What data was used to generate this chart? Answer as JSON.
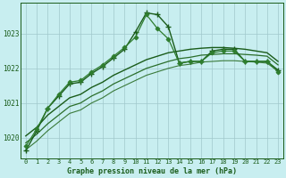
{
  "title": "Graphe pression niveau de la mer (hPa)",
  "bg_color": "#c8eef0",
  "grid_color": "#a0c8cc",
  "line_color_dark": "#1a5c1a",
  "xlim": [
    -0.5,
    23.5
  ],
  "ylim": [
    1019.4,
    1023.9
  ],
  "yticks": [
    1020,
    1021,
    1022,
    1023
  ],
  "xticks": [
    0,
    1,
    2,
    3,
    4,
    5,
    6,
    7,
    8,
    9,
    10,
    11,
    12,
    13,
    14,
    15,
    16,
    17,
    18,
    19,
    20,
    21,
    22,
    23
  ],
  "series": [
    {
      "x": [
        0,
        1,
        2,
        3,
        4,
        5,
        6,
        7,
        8,
        9,
        10,
        11,
        12,
        13,
        14,
        15,
        16,
        17,
        18,
        19,
        20,
        21,
        22,
        23
      ],
      "y": [
        1019.62,
        1020.2,
        1020.85,
        1021.2,
        1021.55,
        1021.6,
        1021.85,
        1022.05,
        1022.3,
        1022.55,
        1023.05,
        1023.6,
        1023.55,
        1023.2,
        1022.15,
        1022.2,
        1022.2,
        1022.5,
        1022.55,
        1022.55,
        1022.2,
        1022.2,
        1022.2,
        1021.95
      ],
      "color": "#1a5c1a",
      "marker": "+",
      "linewidth": 1.0,
      "markersize": 4,
      "markeredgewidth": 1.0
    },
    {
      "x": [
        0,
        1,
        2,
        3,
        4,
        5,
        6,
        7,
        8,
        9,
        10,
        11,
        12,
        13,
        14,
        15,
        16,
        17,
        18,
        19,
        20,
        21,
        22,
        23
      ],
      "y": [
        1019.75,
        1020.25,
        1020.85,
        1021.25,
        1021.6,
        1021.65,
        1021.9,
        1022.1,
        1022.35,
        1022.6,
        1022.9,
        1023.55,
        1023.15,
        1022.85,
        1022.15,
        1022.2,
        1022.2,
        1022.45,
        1022.5,
        1022.5,
        1022.2,
        1022.2,
        1022.2,
        1021.9
      ],
      "color": "#2e7d2e",
      "marker": "D",
      "linewidth": 0.9,
      "markersize": 2.5,
      "markeredgewidth": 0.7
    },
    {
      "x": [
        0,
        1,
        2,
        3,
        4,
        5,
        6,
        7,
        8,
        9,
        10,
        11,
        12,
        13,
        14,
        15,
        16,
        17,
        18,
        19,
        20,
        21,
        22,
        23
      ],
      "y": [
        1020.05,
        1020.3,
        1020.65,
        1020.9,
        1021.15,
        1021.25,
        1021.45,
        1021.6,
        1021.8,
        1021.95,
        1022.1,
        1022.25,
        1022.35,
        1022.45,
        1022.5,
        1022.55,
        1022.58,
        1022.6,
        1022.6,
        1022.58,
        1022.55,
        1022.5,
        1022.45,
        1022.2
      ],
      "color": "#1a5c1a",
      "marker": null,
      "linewidth": 1.0,
      "markersize": 0,
      "markeredgewidth": 0
    },
    {
      "x": [
        0,
        1,
        2,
        3,
        4,
        5,
        6,
        7,
        8,
        9,
        10,
        11,
        12,
        13,
        14,
        15,
        16,
        17,
        18,
        19,
        20,
        21,
        22,
        23
      ],
      "y": [
        1019.85,
        1020.1,
        1020.4,
        1020.65,
        1020.9,
        1021.0,
        1021.2,
        1021.35,
        1021.55,
        1021.7,
        1021.85,
        1022.0,
        1022.1,
        1022.2,
        1022.28,
        1022.32,
        1022.38,
        1022.4,
        1022.42,
        1022.42,
        1022.4,
        1022.38,
        1022.35,
        1022.1
      ],
      "color": "#2a6e2a",
      "marker": null,
      "linewidth": 0.9,
      "markersize": 0,
      "markeredgewidth": 0
    },
    {
      "x": [
        0,
        1,
        2,
        3,
        4,
        5,
        6,
        7,
        8,
        9,
        10,
        11,
        12,
        13,
        14,
        15,
        16,
        17,
        18,
        19,
        20,
        21,
        22,
        23
      ],
      "y": [
        1019.65,
        1019.9,
        1020.2,
        1020.45,
        1020.7,
        1020.8,
        1021.0,
        1021.15,
        1021.35,
        1021.5,
        1021.65,
        1021.8,
        1021.9,
        1022.0,
        1022.08,
        1022.12,
        1022.18,
        1022.2,
        1022.22,
        1022.22,
        1022.2,
        1022.18,
        1022.15,
        1021.92
      ],
      "color": "#3a7a3a",
      "marker": null,
      "linewidth": 0.8,
      "markersize": 0,
      "markeredgewidth": 0
    }
  ]
}
